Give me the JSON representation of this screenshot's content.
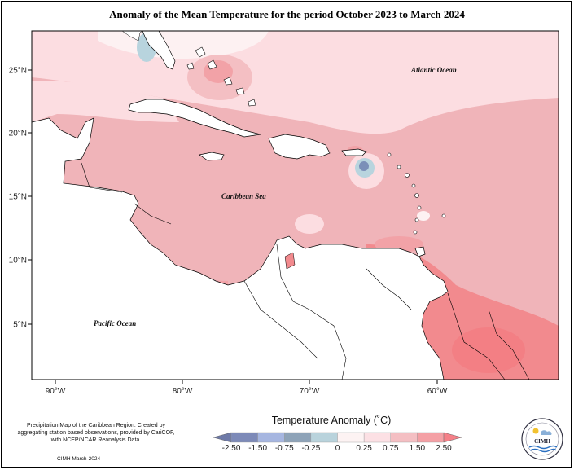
{
  "title": "Anomaly of the Mean Temperature for the period October 2023 to March 2024",
  "map": {
    "lat_ticks": [
      "25°N",
      "20°N",
      "15°N",
      "10°N",
      "5°N"
    ],
    "lon_ticks": [
      "90°W",
      "80°W",
      "70°W",
      "60°W"
    ],
    "labels": {
      "atlantic": "Atlantic Ocean",
      "caribbean": "Caribbean Sea",
      "pacific": "Pacific Ocean"
    },
    "colors": {
      "cold_strong": "#7b8fb8",
      "cold": "#b8d4de",
      "neutral": "#fdf1f2",
      "warm_weak": "#fcdde1",
      "warm": "#f0b3b8",
      "warm_strong": "#f28a8e",
      "land": "#ffffff"
    }
  },
  "legend": {
    "title": "Temperature Anomaly (˚C)",
    "ticks": [
      "-2.50",
      "-1.50",
      "-0.75",
      "-0.25",
      "0",
      "0.25",
      "0.75",
      "1.50",
      "2.50"
    ],
    "bin_colors": [
      "#7d8ab8",
      "#a6b6e0",
      "#8ea3b8",
      "#b9d3dc",
      "#fdf3f3",
      "#fce0e4",
      "#f4bfc3",
      "#f4a0a5"
    ]
  },
  "credit": {
    "text": "Precipitation Map of the Caribbean Region. Created by aggregating station based observations, provided by CariCOF, with NCEP/NCAR Reanalysis Data.",
    "date": "CIMH March-2024"
  },
  "logo": {
    "text": "CIMH"
  }
}
